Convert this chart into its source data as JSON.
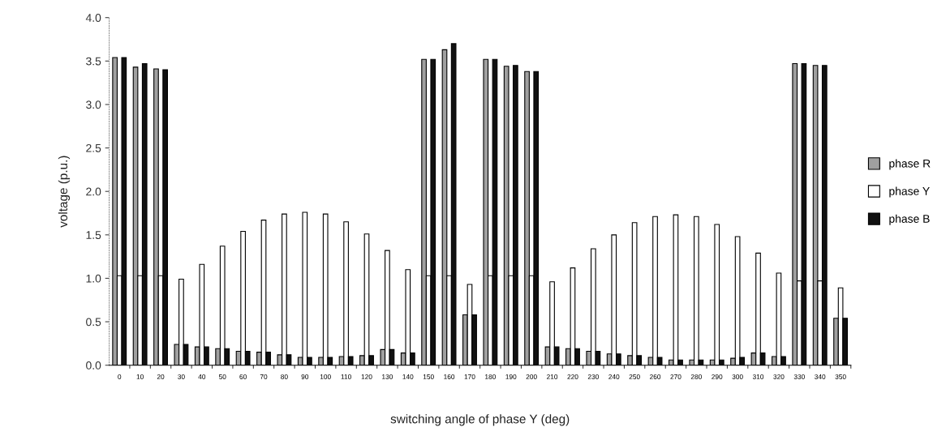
{
  "chart_data": {
    "type": "bar",
    "xlabel": "switching angle of phase Y (deg)",
    "ylabel": "voltage (p.u.)",
    "categories": [
      "0",
      "10",
      "20",
      "30",
      "40",
      "50",
      "60",
      "70",
      "80",
      "90",
      "100",
      "110",
      "120",
      "130",
      "140",
      "150",
      "160",
      "170",
      "180",
      "190",
      "200",
      "210",
      "220",
      "230",
      "240",
      "250",
      "260",
      "270",
      "280",
      "290",
      "300",
      "310",
      "320",
      "330",
      "340",
      "350"
    ],
    "series": [
      {
        "name": "phase R",
        "color": "#a0a0a0",
        "values": [
          3.54,
          3.43,
          3.41,
          0.24,
          0.21,
          0.19,
          0.16,
          0.15,
          0.12,
          0.09,
          0.09,
          0.1,
          0.11,
          0.18,
          0.14,
          3.52,
          3.63,
          0.58,
          3.52,
          3.44,
          3.38,
          0.21,
          0.19,
          0.16,
          0.13,
          0.11,
          0.09,
          0.06,
          0.06,
          0.06,
          0.08,
          0.14,
          0.1,
          3.47,
          3.45,
          0.54
        ]
      },
      {
        "name": "phase Y",
        "color": "#ffffff",
        "values": [
          1.03,
          1.03,
          1.03,
          0.99,
          1.16,
          1.37,
          1.54,
          1.67,
          1.74,
          1.76,
          1.74,
          1.65,
          1.51,
          1.32,
          1.1,
          1.03,
          1.03,
          0.93,
          1.03,
          1.03,
          1.03,
          0.96,
          1.12,
          1.34,
          1.5,
          1.64,
          1.71,
          1.73,
          1.71,
          1.62,
          1.48,
          1.29,
          1.06,
          0.97,
          0.97,
          0.89
        ]
      },
      {
        "name": "phase B",
        "color": "#111111",
        "values": [
          3.54,
          3.47,
          3.4,
          0.24,
          0.21,
          0.19,
          0.16,
          0.15,
          0.12,
          0.09,
          0.09,
          0.1,
          0.11,
          0.18,
          0.14,
          3.52,
          3.7,
          0.58,
          3.52,
          3.45,
          3.38,
          0.21,
          0.19,
          0.16,
          0.13,
          0.11,
          0.09,
          0.06,
          0.06,
          0.06,
          0.09,
          0.14,
          0.1,
          3.47,
          3.45,
          0.54
        ]
      }
    ],
    "ylim": [
      0,
      4
    ],
    "yticks": [
      {
        "value": 0,
        "label": "0.0"
      },
      0.5,
      {
        "value": 1,
        "label": "1.0"
      },
      1.5,
      {
        "value": 2,
        "label": "2.0"
      },
      2.5,
      {
        "value": 3,
        "label": "3.0"
      },
      3.5,
      {
        "value": 4,
        "label": "4.0"
      }
    ],
    "grid": false,
    "legend": "right"
  }
}
